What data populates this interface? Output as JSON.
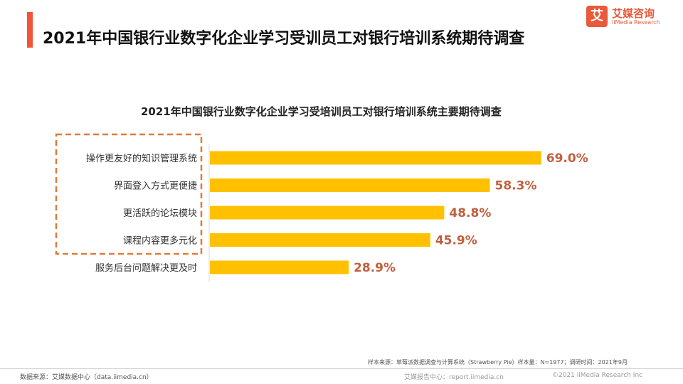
{
  "header": {
    "title": "2021年中国银行业数字化企业学习受训员工对银行培训系统期待调查",
    "logo_cn": "艾媒咨询",
    "logo_en": "iiMedia Research",
    "logo_glyph": "艾",
    "accent_color": "#f0553a"
  },
  "chart_data": {
    "type": "bar",
    "orientation": "horizontal",
    "title": "2021年中国银行业数字化企业学习受培训员工对银行培训系统主要期待调查",
    "categories": [
      "操作更友好的知识管理系统",
      "界面登入方式更便捷",
      "更活跃的论坛模块",
      "课程内容更多元化",
      "服务后台问题解决更及时"
    ],
    "values": [
      69.0,
      58.3,
      48.8,
      45.9,
      28.9
    ],
    "value_labels": [
      "69.0%",
      "58.3%",
      "48.8%",
      "45.9%",
      "28.9%"
    ],
    "xlim": [
      0,
      100
    ],
    "grid": false,
    "bar_color": "#ffc000",
    "value_label_color": "#c0603e",
    "highlight_box_color": "#e07b39"
  },
  "notes": {
    "sample": "样本来源：草莓派数据调查与计算系统（Strawberry Pie）样本量：N=1977；调研时间：2021年9月"
  },
  "footer": {
    "source": "数据来源：艾媒数据中心（data.iimedia.cn）",
    "report_center": "艾媒报告中心：report.iimedia.cn",
    "copyright": "©2021  iiMedia Research  Inc"
  }
}
